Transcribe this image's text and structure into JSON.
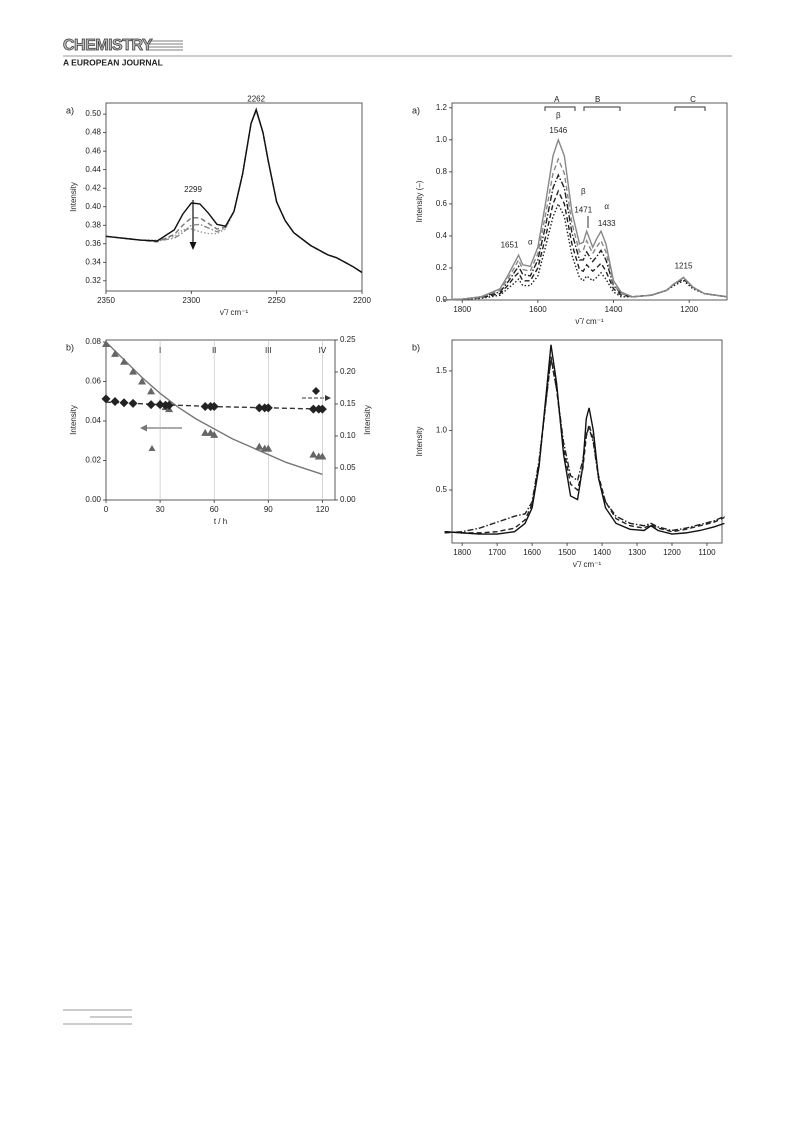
{
  "header": {
    "title": "CHEMISTRY",
    "subtitle": "A EUROPEAN JOURNAL"
  },
  "chart_data": [
    {
      "type": "line",
      "panel_label": "a)",
      "xlabel": "ν̃ / cm⁻¹",
      "ylabel": "Intensity",
      "xlim": [
        2350,
        2200
      ],
      "ylim": [
        0.309,
        0.512
      ],
      "xticks": [
        2350,
        2300,
        2250,
        2200
      ],
      "yticks": [
        0.32,
        0.34,
        0.36,
        0.38,
        {
          "value": 0.4,
          "label": "0.40"
        },
        0.42,
        0.44,
        0.46,
        0.48,
        {
          "value": 0.5,
          "label": "0.50"
        }
      ],
      "x": [
        2350,
        2340,
        2330,
        2320,
        2310,
        2305,
        2300,
        2295,
        2290,
        2285,
        2280,
        2275,
        2270,
        2265,
        2262,
        2258,
        2255,
        2250,
        2245,
        2240,
        2230,
        2220,
        2215,
        2210,
        2205,
        2200
      ],
      "series": [
        {
          "color": "#999999",
          "dash": "dotted",
          "values": [
            0.368,
            0.366,
            0.364,
            0.364,
            0.368,
            0.375,
            0.376,
            0.373,
            0.371,
            0.371,
            0.376,
            0.395,
            0.435,
            0.49,
            0.503,
            0.48,
            0.45,
            0.405,
            0.385,
            0.372,
            0.358,
            0.348,
            0.345,
            0.34,
            0.335,
            0.329
          ]
        },
        {
          "color": "#888888",
          "dash": "dashdot",
          "values": [
            0.368,
            0.366,
            0.364,
            0.363,
            0.366,
            0.372,
            0.38,
            0.381,
            0.377,
            0.373,
            0.377,
            0.395,
            0.435,
            0.49,
            0.504,
            0.48,
            0.45,
            0.405,
            0.385,
            0.372,
            0.358,
            0.348,
            0.345,
            0.34,
            0.335,
            0.329
          ]
        },
        {
          "color": "#777777",
          "dash": "dashed",
          "values": [
            0.368,
            0.366,
            0.364,
            0.362,
            0.37,
            0.38,
            0.388,
            0.388,
            0.382,
            0.376,
            0.378,
            0.395,
            0.435,
            0.49,
            0.504,
            0.48,
            0.45,
            0.405,
            0.385,
            0.372,
            0.358,
            0.348,
            0.345,
            0.34,
            0.335,
            0.329
          ]
        },
        {
          "color": "#111111",
          "dash": "solid",
          "values": [
            0.368,
            0.366,
            0.364,
            0.363,
            0.375,
            0.392,
            0.404,
            0.403,
            0.393,
            0.381,
            0.379,
            0.395,
            0.435,
            0.49,
            0.505,
            0.48,
            0.45,
            0.405,
            0.385,
            0.372,
            0.358,
            0.348,
            0.345,
            0.34,
            0.335,
            0.329
          ]
        }
      ],
      "annotations": [
        {
          "text": "2262",
          "x": 2262,
          "y": 0.516
        },
        {
          "text": "2299",
          "x": 2299,
          "y": 0.418
        }
      ]
    },
    {
      "type": "scatter",
      "panel_label": "b)",
      "xlabel": "t / h",
      "ylabel": "Intensity",
      "y2label": "Intensity",
      "xlim": [
        0,
        127
      ],
      "ylim": [
        0,
        0.081
      ],
      "y2lim": [
        0,
        0.25
      ],
      "xticks": [
        0,
        30,
        60,
        90,
        120
      ],
      "yticks": [
        {
          "value": 0,
          "label": "0.00"
        },
        0.02,
        0.04,
        0.06,
        0.08
      ],
      "y2ticks": [
        {
          "value": 0,
          "label": "0.00"
        },
        0.05,
        {
          "value": 0.1,
          "label": "0.10"
        },
        0.15,
        {
          "value": 0.2,
          "label": "0.20"
        },
        0.25
      ],
      "series": [
        {
          "color": "#777777",
          "dash": "solid",
          "x": [
            0,
            10,
            20,
            30,
            40,
            50,
            60,
            70,
            80,
            90,
            100,
            110,
            120
          ],
          "values": [
            0.08,
            0.071,
            0.062,
            0.054,
            0.047,
            0.041,
            0.036,
            0.031,
            0.027,
            0.023,
            0.019,
            0.016,
            0.013
          ]
        },
        {
          "color": "#333333",
          "dash": "dashed",
          "axis": "y2",
          "x": [
            0,
            30,
            60,
            90,
            120
          ],
          "values": [
            0.153,
            0.149,
            0.146,
            0.144,
            0.142
          ]
        },
        {
          "color": "#666666",
          "marker": "triangle",
          "x": [
            0,
            5,
            10,
            15,
            20,
            25,
            30,
            33,
            35,
            55,
            58,
            60,
            85,
            88,
            90,
            115,
            118,
            120
          ],
          "values": [
            0.079,
            0.074,
            0.07,
            0.065,
            0.06,
            0.055,
            0.049,
            0.047,
            0.046,
            0.034,
            0.034,
            0.033,
            0.027,
            0.026,
            0.026,
            0.023,
            0.022,
            0.022
          ]
        },
        {
          "color": "#222222",
          "marker": "diamond",
          "axis": "y2",
          "x": [
            0,
            5,
            10,
            15,
            25,
            30,
            33,
            35,
            55,
            58,
            60,
            85,
            88,
            90,
            115,
            118,
            120
          ],
          "values": [
            0.158,
            0.154,
            0.152,
            0.151,
            0.149,
            0.149,
            0.148,
            0.148,
            0.146,
            0.146,
            0.146,
            0.144,
            0.144,
            0.144,
            0.142,
            0.142,
            0.142
          ]
        }
      ],
      "annotation_lines": true,
      "annotations": [
        {
          "text": "I",
          "x": 30,
          "y": 0.0755
        },
        {
          "text": "II",
          "x": 60,
          "y": 0.0755
        },
        {
          "text": "III",
          "x": 90,
          "y": 0.0755
        },
        {
          "text": "IV",
          "x": 120,
          "y": 0.0755
        }
      ]
    },
    {
      "type": "line",
      "panel_label": "a)",
      "xlabel": "ν̃ / cm⁻¹",
      "ylabel": "Intensity (–)",
      "xlim": [
        1827,
        1100
      ],
      "ylim": [
        0,
        1.23
      ],
      "xticks": [
        1800,
        1600,
        1400,
        1200
      ],
      "yticks": [
        {
          "value": 0,
          "label": "0.0"
        },
        0.2,
        0.4,
        0.6,
        0.8,
        {
          "value": 1,
          "label": "1.0"
        },
        1.2
      ],
      "x": [
        1850,
        1800,
        1750,
        1700,
        1680,
        1660,
        1651,
        1640,
        1620,
        1600,
        1580,
        1560,
        1546,
        1530,
        1510,
        1490,
        1480,
        1471,
        1455,
        1445,
        1433,
        1420,
        1400,
        1380,
        1350,
        1300,
        1260,
        1240,
        1215,
        1190,
        1160,
        1130,
        1100
      ],
      "series": [
        {
          "color": "#222222",
          "dash": "dotted",
          "values": [
            0,
            0.005,
            0.01,
            0.03,
            0.07,
            0.11,
            0.13,
            0.09,
            0.09,
            0.15,
            0.33,
            0.52,
            0.6,
            0.52,
            0.28,
            0.14,
            0.12,
            0.15,
            0.12,
            0.14,
            0.17,
            0.13,
            0.05,
            0.02,
            0.02,
            0.03,
            0.06,
            0.09,
            0.12,
            0.07,
            0.04,
            0.03,
            0.02
          ]
        },
        {
          "color": "#222222",
          "dash": "dashed",
          "values": [
            0,
            0.005,
            0.015,
            0.04,
            0.09,
            0.15,
            0.17,
            0.12,
            0.12,
            0.2,
            0.39,
            0.6,
            0.68,
            0.6,
            0.35,
            0.19,
            0.18,
            0.22,
            0.18,
            0.2,
            0.23,
            0.18,
            0.07,
            0.03,
            0.02,
            0.03,
            0.06,
            0.1,
            0.13,
            0.08,
            0.04,
            0.03,
            0.02
          ]
        },
        {
          "color": "#222222",
          "dash": "dashdot",
          "values": [
            0,
            0.005,
            0.02,
            0.05,
            0.11,
            0.18,
            0.21,
            0.16,
            0.15,
            0.25,
            0.46,
            0.7,
            0.78,
            0.7,
            0.42,
            0.25,
            0.25,
            0.3,
            0.24,
            0.27,
            0.31,
            0.25,
            0.09,
            0.04,
            0.02,
            0.03,
            0.06,
            0.1,
            0.14,
            0.08,
            0.04,
            0.03,
            0.02
          ]
        },
        {
          "color": "#888888",
          "dash": "dashed",
          "values": [
            0,
            0.005,
            0.02,
            0.06,
            0.13,
            0.21,
            0.25,
            0.19,
            0.18,
            0.29,
            0.53,
            0.79,
            0.88,
            0.79,
            0.48,
            0.3,
            0.31,
            0.37,
            0.29,
            0.33,
            0.37,
            0.3,
            0.1,
            0.04,
            0.02,
            0.03,
            0.06,
            0.1,
            0.14,
            0.08,
            0.04,
            0.03,
            0.02
          ]
        },
        {
          "color": "#888888",
          "dash": "solid",
          "values": [
            0,
            0.005,
            0.02,
            0.07,
            0.15,
            0.24,
            0.28,
            0.22,
            0.21,
            0.33,
            0.6,
            0.9,
            1.0,
            0.9,
            0.55,
            0.35,
            0.36,
            0.43,
            0.33,
            0.38,
            0.43,
            0.35,
            0.12,
            0.05,
            0.02,
            0.03,
            0.06,
            0.1,
            0.14,
            0.08,
            0.04,
            0.03,
            0.02
          ]
        }
      ],
      "annotations": [
        {
          "text": "A",
          "x": 1550,
          "y": 1.25
        },
        {
          "text": "B",
          "x": 1442,
          "y": 1.25
        },
        {
          "text": "C",
          "x": 1190,
          "y": 1.25
        },
        {
          "text": "β",
          "x": 1546,
          "y": 1.15
        },
        {
          "text": "1546",
          "x": 1546,
          "y": 1.056
        },
        {
          "text": "β",
          "x": 1480,
          "y": 0.675
        },
        {
          "text": "1471",
          "x": 1480,
          "y": 0.56
        },
        {
          "text": "α",
          "x": 1418,
          "y": 0.58
        },
        {
          "text": "1433",
          "x": 1418,
          "y": 0.475
        },
        {
          "text": "1651",
          "x": 1675,
          "y": 0.34
        },
        {
          "text": "α",
          "x": 1620,
          "y": 0.36
        },
        {
          "text": "1215",
          "x": 1215,
          "y": 0.21
        }
      ]
    },
    {
      "type": "line",
      "panel_label": "b)",
      "xlabel": "ν̃ / cm⁻¹",
      "ylabel": "Intensity",
      "xlim": [
        1829,
        1057
      ],
      "ylim": [
        0.055,
        1.76
      ],
      "xticks": [
        1800,
        1700,
        1600,
        1500,
        1400,
        1300,
        1200,
        1100
      ],
      "yticks": [
        0.5,
        {
          "value": 1,
          "label": "1.0"
        },
        1.5
      ],
      "x": [
        1850,
        1800,
        1750,
        1700,
        1650,
        1620,
        1600,
        1580,
        1560,
        1546,
        1530,
        1510,
        1490,
        1470,
        1455,
        1445,
        1437,
        1425,
        1410,
        1390,
        1360,
        1320,
        1280,
        1260,
        1240,
        1200,
        1160,
        1120,
        1080,
        1050
      ],
      "series": [
        {
          "color": "#222222",
          "dash": "dashdot",
          "values": [
            0.14,
            0.15,
            0.18,
            0.23,
            0.28,
            0.3,
            0.4,
            0.75,
            1.25,
            1.6,
            1.35,
            0.9,
            0.62,
            0.58,
            0.75,
            0.97,
            1.02,
            0.9,
            0.6,
            0.4,
            0.28,
            0.22,
            0.2,
            0.22,
            0.19,
            0.16,
            0.18,
            0.21,
            0.24,
            0.28
          ]
        },
        {
          "color": "#222222",
          "dash": "dashed",
          "values": [
            0.15,
            0.14,
            0.14,
            0.15,
            0.18,
            0.25,
            0.38,
            0.72,
            1.25,
            1.62,
            1.35,
            0.85,
            0.55,
            0.5,
            0.68,
            0.95,
            1.05,
            0.92,
            0.62,
            0.4,
            0.26,
            0.2,
            0.18,
            0.21,
            0.18,
            0.15,
            0.17,
            0.2,
            0.23,
            0.27
          ]
        },
        {
          "color": "#111111",
          "dash": "solid",
          "values": [
            0.15,
            0.14,
            0.13,
            0.13,
            0.15,
            0.22,
            0.35,
            0.7,
            1.3,
            1.72,
            1.4,
            0.8,
            0.45,
            0.42,
            0.7,
            1.1,
            1.19,
            1.0,
            0.6,
            0.35,
            0.22,
            0.17,
            0.16,
            0.2,
            0.16,
            0.13,
            0.14,
            0.16,
            0.19,
            0.22
          ]
        }
      ]
    }
  ]
}
